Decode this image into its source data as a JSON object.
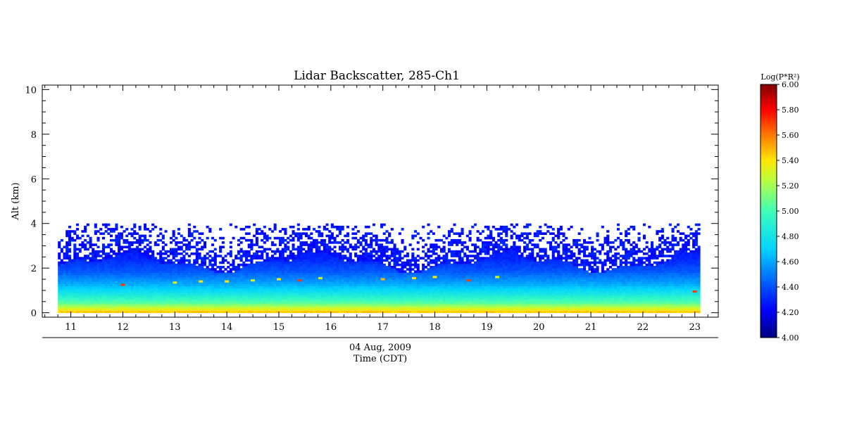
{
  "chart_data": {
    "type": "heatmap",
    "title": "Lidar Backscatter, 285-Ch1",
    "ylabel": "Alt (km)",
    "xlabel_date": "04 Aug, 2009",
    "xlabel": "Time (CDT)",
    "xlim": [
      10.45,
      23.45
    ],
    "ylim": [
      -0.2,
      10.2
    ],
    "x_ticks": [
      11,
      12,
      13,
      14,
      15,
      16,
      17,
      18,
      19,
      20,
      21,
      22,
      23
    ],
    "y_ticks": [
      0,
      2,
      4,
      6,
      8,
      10
    ],
    "data_time_range": [
      10.75,
      23.1
    ],
    "data_alt_range": [
      0,
      4.0
    ],
    "colorbar": {
      "label": "Log(P*R²)",
      "range": [
        4.0,
        6.0
      ],
      "ticks": [
        "4.00",
        "4.20",
        "4.40",
        "4.60",
        "4.80",
        "5.00",
        "5.20",
        "5.40",
        "5.60",
        "5.80",
        "6.00"
      ],
      "colormap": "rainbow"
    },
    "profile": {
      "description_levels": [
        {
          "alt": 0.0,
          "value": 5.45
        },
        {
          "alt": 0.15,
          "value": 5.3
        },
        {
          "alt": 0.4,
          "value": 5.05
        },
        {
          "alt": 0.8,
          "value": 4.82
        },
        {
          "alt": 1.2,
          "value": 4.62
        },
        {
          "alt": 1.8,
          "value": 4.42
        },
        {
          "alt": 2.4,
          "value": 4.3
        },
        {
          "alt": 4.0,
          "value": 4.2
        }
      ]
    },
    "clouds": [
      {
        "t": 12.0,
        "alt": 1.2,
        "value": 5.7
      },
      {
        "t": 13.0,
        "alt": 1.3,
        "value": 5.3
      },
      {
        "t": 13.5,
        "alt": 1.35,
        "value": 5.4
      },
      {
        "t": 14.0,
        "alt": 1.35,
        "value": 5.4
      },
      {
        "t": 14.5,
        "alt": 1.4,
        "value": 5.3
      },
      {
        "t": 15.0,
        "alt": 1.45,
        "value": 5.4
      },
      {
        "t": 15.4,
        "alt": 1.4,
        "value": 5.7
      },
      {
        "t": 15.8,
        "alt": 1.5,
        "value": 5.3
      },
      {
        "t": 17.0,
        "alt": 1.45,
        "value": 5.5
      },
      {
        "t": 17.6,
        "alt": 1.5,
        "value": 5.4
      },
      {
        "t": 18.0,
        "alt": 1.55,
        "value": 5.4
      },
      {
        "t": 18.65,
        "alt": 1.4,
        "value": 5.7
      },
      {
        "t": 19.2,
        "alt": 1.55,
        "value": 5.3
      },
      {
        "t": 23.0,
        "alt": 0.9,
        "value": 5.7
      }
    ]
  }
}
